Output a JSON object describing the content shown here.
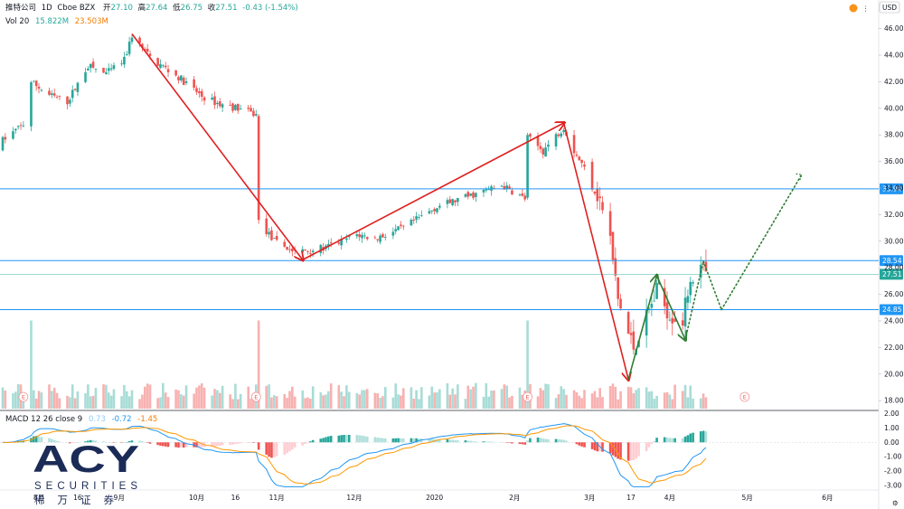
{
  "header": {
    "symbol": "推特公司",
    "interval": "1D",
    "exchange": "Cboe BZX",
    "open_label": "开",
    "open": "27.10",
    "high_label": "高",
    "high": "27.64",
    "low_label": "低",
    "low": "26.75",
    "close_label": "收",
    "close": "27.51",
    "change": "-0.43 (-1.54%)",
    "vol_label": "Vol 20",
    "vol_value1": "15.822M",
    "vol_value2": "23.503M",
    "macd_label": "MACD 12 26 close 9",
    "macd_v1": "0.73",
    "macd_v2": "-0.72",
    "macd_v3": "-1.45",
    "currency": "USD"
  },
  "price_axis_ticks": [
    "46.00",
    "44.00",
    "42.00",
    "40.00",
    "38.00",
    "36.00",
    "34.00",
    "32.00",
    "30.00",
    "28.00",
    "26.00",
    "24.00",
    "22.00",
    "20.00",
    "18.00"
  ],
  "macd_axis_ticks": [
    "2.00",
    "1.00",
    "0.00",
    "-1.00",
    "-2.00",
    "-3.00"
  ],
  "time_axis_ticks": [
    "8月",
    "16",
    "9月",
    "10月",
    "16",
    "11月",
    "12月",
    "2020",
    "2月",
    "3月",
    "17",
    "4月",
    "5月",
    "6月"
  ],
  "levels": [
    "33.94",
    "28.54",
    "27.51",
    "24.85"
  ],
  "logo": {
    "brand": "ACY",
    "sub": "SECURITIES",
    "cn": "稀万证券"
  },
  "colors": {
    "up": "#26a69a",
    "down": "#ef5350",
    "level": "#2196f3",
    "arrow_red": "#e02020",
    "arrow_green": "#2e7d32",
    "last": "#26a69a"
  },
  "chart_data": {
    "type": "candlestick",
    "price_range": [
      17.4,
      47.2
    ],
    "macd_range": [
      -3.2,
      2.1
    ],
    "support_resistance": [
      33.94,
      28.54,
      24.85
    ],
    "last_price": 27.51,
    "red_trend_path": [
      {
        "date": "2019-09-06",
        "price": 45.6
      },
      {
        "date": "2019-11-11",
        "price": 28.6
      },
      {
        "date": "2020-02-20",
        "price": 38.9
      },
      {
        "date": "2020-03-16",
        "price": 19.6
      }
    ],
    "green_trend_path": [
      {
        "date": "2020-03-16",
        "price": 19.6
      },
      {
        "date": "2020-03-27",
        "price": 27.4
      },
      {
        "date": "2020-04-07",
        "price": 22.6
      }
    ],
    "projection_path": [
      {
        "date": "2020-04-07",
        "price": 22.6
      },
      {
        "date": "2020-04-14",
        "price": 28.5
      },
      {
        "date": "2020-04-21",
        "price": 24.85
      },
      {
        "date": "2020-05-22",
        "price": 35.0
      }
    ]
  }
}
